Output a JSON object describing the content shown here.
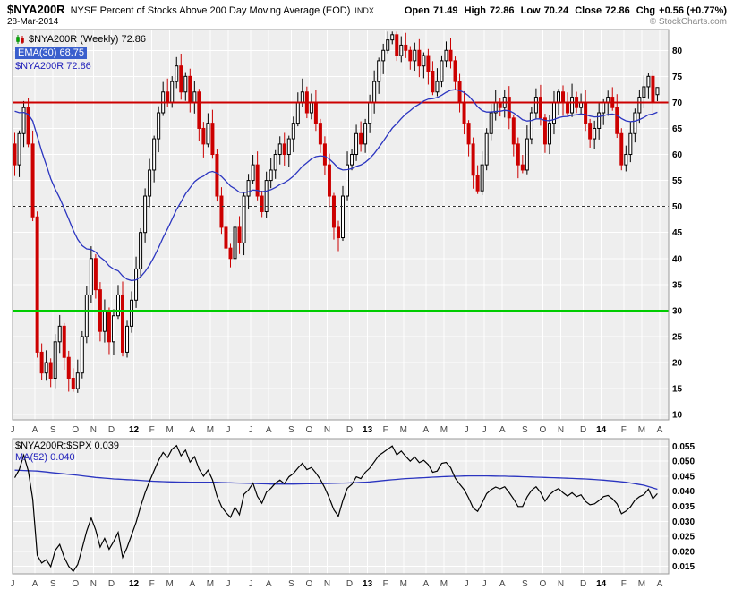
{
  "header": {
    "symbol": "$NYA200R",
    "title": "NYSE Percent of Stocks Above 200 Day Moving Average (EOD)",
    "exchange": "INDX",
    "date": "28-Mar-2014",
    "watermark": "© StockCharts.com",
    "quote": {
      "open_label": "Open",
      "open_value": "71.49",
      "high_label": "High",
      "high_value": "72.86",
      "low_label": "Low",
      "low_value": "70.24",
      "close_label": "Close",
      "close_value": "72.86",
      "chg_label": "Chg",
      "chg_value": "+0.56 (+0.77%)"
    }
  },
  "legend_main": {
    "line1": "$NYA200R (Weekly) 72.86",
    "line2": "EMA(30) 68.75",
    "line3": "$NYA200R 72.86"
  },
  "legend_lower": {
    "line1": "$NYA200R:$SPX 0.039",
    "line2": "MA(52) 0.040"
  },
  "colors": {
    "up": "#000000",
    "up_fill": "#ffffff",
    "down": "#cc0000",
    "ema": "#2b35c0",
    "ratio_line": "#000000",
    "ma_line": "#2b35c0",
    "hline_resistance": "#cc0000",
    "hline_support": "#00cc00",
    "hline_mid": "#333333",
    "plot_bg": "#eeeeee",
    "grid": "#ffffff",
    "border": "#999999"
  },
  "chart_data": [
    {
      "type": "candlestick",
      "series_name": "$NYA200R (Weekly)",
      "overlay": "EMA(30)",
      "ylim": [
        9,
        84
      ],
      "yticks": [
        80,
        75,
        70,
        65,
        60,
        55,
        50,
        45,
        40,
        35,
        30,
        25,
        20,
        15,
        10
      ],
      "hlines": [
        {
          "value": 70,
          "role": "resistance"
        },
        {
          "value": 50,
          "role": "mid-dashed"
        },
        {
          "value": 30,
          "role": "support"
        }
      ],
      "months": [
        {
          "l": "J",
          "w": 5
        },
        {
          "l": "A",
          "w": 4
        },
        {
          "l": "S",
          "w": 5
        },
        {
          "l": "O",
          "w": 4
        },
        {
          "l": "N",
          "w": 4
        },
        {
          "l": "D",
          "w": 5
        },
        {
          "l": "12",
          "w": 4,
          "y": true
        },
        {
          "l": "F",
          "w": 4
        },
        {
          "l": "M",
          "w": 5
        },
        {
          "l": "A",
          "w": 4
        },
        {
          "l": "M",
          "w": 4
        },
        {
          "l": "J",
          "w": 5
        },
        {
          "l": "J",
          "w": 4
        },
        {
          "l": "A",
          "w": 5
        },
        {
          "l": "S",
          "w": 4
        },
        {
          "l": "O",
          "w": 4
        },
        {
          "l": "N",
          "w": 5
        },
        {
          "l": "D",
          "w": 4
        },
        {
          "l": "13",
          "w": 4,
          "y": true
        },
        {
          "l": "F",
          "w": 4
        },
        {
          "l": "M",
          "w": 5
        },
        {
          "l": "A",
          "w": 4
        },
        {
          "l": "M",
          "w": 5
        },
        {
          "l": "J",
          "w": 4
        },
        {
          "l": "J",
          "w": 4
        },
        {
          "l": "A",
          "w": 5
        },
        {
          "l": "S",
          "w": 4
        },
        {
          "l": "O",
          "w": 4
        },
        {
          "l": "N",
          "w": 5
        },
        {
          "l": "D",
          "w": 4
        },
        {
          "l": "14",
          "w": 5,
          "y": true
        },
        {
          "l": "F",
          "w": 4
        },
        {
          "l": "M",
          "w": 4
        },
        {
          "l": "A",
          "w": 0
        }
      ],
      "closes": [
        58,
        64,
        69,
        62,
        48,
        22,
        18,
        20,
        17,
        24,
        27,
        21,
        17,
        15,
        18,
        25,
        33,
        40,
        34,
        26,
        30,
        24,
        29,
        33,
        22,
        27,
        32,
        38,
        45,
        52,
        57,
        63,
        68,
        72,
        70,
        74,
        77,
        72,
        75,
        70,
        72,
        65,
        62,
        66,
        60,
        52,
        46,
        42,
        40,
        46,
        43,
        52,
        55,
        58,
        52,
        49,
        55,
        57,
        60,
        62,
        60,
        63,
        66,
        70,
        72,
        68,
        70,
        66,
        62,
        58,
        52,
        46,
        44,
        52,
        58,
        60,
        64,
        62,
        66,
        70,
        74,
        78,
        80,
        82,
        83,
        79,
        81,
        80,
        78,
        80,
        77,
        79,
        76,
        72,
        74,
        78,
        80,
        78,
        74,
        70,
        66,
        62,
        56,
        53,
        58,
        64,
        68,
        70,
        69,
        71,
        67,
        62,
        58,
        57,
        63,
        68,
        71,
        67,
        62,
        66,
        70,
        72,
        70,
        68,
        71,
        69,
        70,
        66,
        63,
        65,
        68,
        70,
        71,
        69,
        64,
        58,
        60,
        64,
        68,
        71,
        73,
        75,
        70,
        72.86
      ],
      "last_bar": {
        "open": 71.49,
        "high": 72.86,
        "low": 70.24,
        "close": 72.86
      },
      "ema30": {
        "period": 30,
        "seed": 69.0,
        "last": 68.75
      }
    },
    {
      "type": "line",
      "series_name": "$NYA200R:$SPX",
      "overlay": "MA(52)",
      "ylim": [
        0.0125,
        0.0575
      ],
      "yticks": [
        0.055,
        0.05,
        0.045,
        0.04,
        0.035,
        0.03,
        0.025,
        0.02,
        0.015
      ],
      "values": [
        0.0445,
        0.0472,
        0.052,
        0.0468,
        0.0373,
        0.0187,
        0.0161,
        0.0172,
        0.0149,
        0.0203,
        0.0223,
        0.018,
        0.015,
        0.0133,
        0.0156,
        0.021,
        0.0267,
        0.0311,
        0.0271,
        0.0214,
        0.0243,
        0.0207,
        0.0233,
        0.0263,
        0.018,
        0.0213,
        0.0254,
        0.0297,
        0.0349,
        0.0395,
        0.0433,
        0.0468,
        0.0503,
        0.0529,
        0.0512,
        0.054,
        0.0552,
        0.0518,
        0.0537,
        0.0497,
        0.0515,
        0.0474,
        0.045,
        0.047,
        0.0438,
        0.0384,
        0.0349,
        0.0329,
        0.0313,
        0.0347,
        0.0322,
        0.039,
        0.0404,
        0.0427,
        0.0383,
        0.036,
        0.0397,
        0.041,
        0.0427,
        0.0437,
        0.0425,
        0.0448,
        0.0459,
        0.0477,
        0.0493,
        0.0472,
        0.0479,
        0.0461,
        0.0439,
        0.0411,
        0.0377,
        0.0338,
        0.0317,
        0.0369,
        0.041,
        0.0423,
        0.0448,
        0.0442,
        0.0463,
        0.0477,
        0.0498,
        0.0519,
        0.0529,
        0.054,
        0.0551,
        0.0521,
        0.0534,
        0.0516,
        0.05,
        0.0514,
        0.0495,
        0.0503,
        0.0489,
        0.0463,
        0.0467,
        0.0493,
        0.0496,
        0.0478,
        0.0444,
        0.0424,
        0.0405,
        0.0377,
        0.0344,
        0.0333,
        0.0361,
        0.0392,
        0.0405,
        0.0414,
        0.0408,
        0.0415,
        0.0396,
        0.0374,
        0.0349,
        0.0349,
        0.0381,
        0.0403,
        0.0415,
        0.0396,
        0.0367,
        0.0388,
        0.0401,
        0.0409,
        0.0395,
        0.0384,
        0.0395,
        0.0382,
        0.0388,
        0.0366,
        0.0355,
        0.0358,
        0.0369,
        0.0382,
        0.0386,
        0.0375,
        0.0358,
        0.0325,
        0.0334,
        0.0348,
        0.037,
        0.0382,
        0.0389,
        0.0407,
        0.0375,
        0.0392
      ],
      "ma52_monthly": [
        0.047,
        0.0467,
        0.0461,
        0.0453,
        0.0446,
        0.0441,
        0.0437,
        0.0433,
        0.0431,
        0.043,
        0.043,
        0.0428,
        0.0426,
        0.0424,
        0.0424,
        0.0425,
        0.0426,
        0.0428,
        0.0431,
        0.0437,
        0.0442,
        0.0446,
        0.0449,
        0.0451,
        0.0451,
        0.045,
        0.0448,
        0.0446,
        0.0444,
        0.0441,
        0.0437,
        0.043,
        0.042,
        0.0402
      ],
      "last": 0.039,
      "ma_last": 0.04
    }
  ]
}
